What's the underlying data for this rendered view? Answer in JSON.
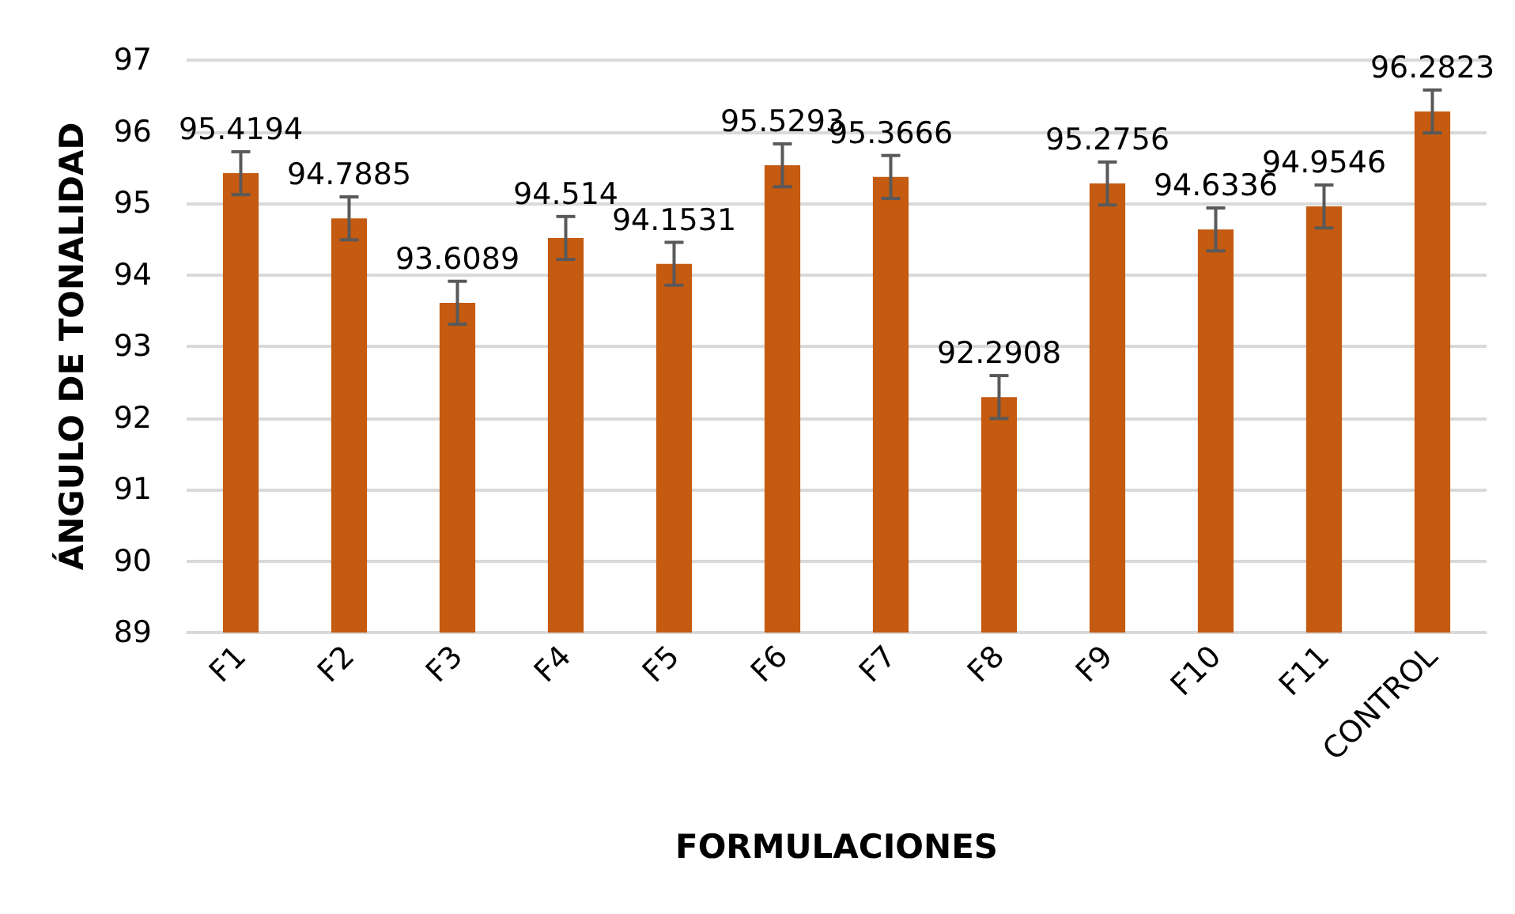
{
  "chart_data": {
    "type": "bar",
    "xlabel": "FORMULACIONES",
    "ylabel": "ÁNGULO DE TONALIDAD",
    "categories": [
      "F1",
      "F2",
      "F3",
      "F4",
      "F5",
      "F6",
      "F7",
      "F8",
      "F9",
      "F10",
      "F11",
      "CONTROL"
    ],
    "values": [
      95.4194,
      94.7885,
      93.6089,
      94.514,
      94.1531,
      95.5293,
      95.3666,
      92.2908,
      95.2756,
      94.6336,
      94.9546,
      96.2823
    ],
    "errors": [
      0.3,
      0.3,
      0.3,
      0.3,
      0.3,
      0.3,
      0.3,
      0.3,
      0.3,
      0.3,
      0.3,
      0.3
    ],
    "color": "#c55a11",
    "ylim": [
      89,
      97
    ],
    "yticks": [
      89,
      90,
      91,
      92,
      93,
      94,
      95,
      96,
      97
    ],
    "grid": "y",
    "data_labels": true
  }
}
